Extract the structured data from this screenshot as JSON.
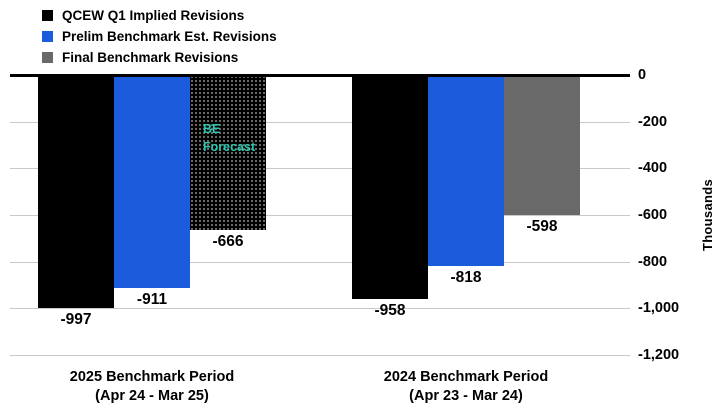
{
  "legend": {
    "items": [
      {
        "label": "QCEW Q1 Implied Revisions",
        "color": "#000000"
      },
      {
        "label": "Prelim Benchmark Est. Revisions",
        "color": "#1A5CDC"
      },
      {
        "label": "Final Benchmark Revisions",
        "color": "#696969"
      }
    ]
  },
  "chart_data": {
    "type": "bar",
    "ylabel": "Thousands",
    "ylim": [
      -1200,
      0
    ],
    "yticks": [
      "0",
      "-200",
      "-400",
      "-600",
      "-800",
      "-1,000",
      "-1,200"
    ],
    "grid": true,
    "legend_position": "top-left",
    "categories": [
      {
        "line1": "2025 Benchmark Period",
        "line2": "(Apr 24 - Mar 25)"
      },
      {
        "line1": "2024 Benchmark Period",
        "line2": "(Apr 23 - Mar 24)"
      }
    ],
    "series": [
      {
        "name": "QCEW Q1 Implied Revisions",
        "color": "#000000",
        "values": [
          -997,
          -958
        ],
        "labels": [
          "-997",
          "-958"
        ]
      },
      {
        "name": "Prelim Benchmark Est. Revisions",
        "color": "#1A5CDC",
        "values": [
          -911,
          -818
        ],
        "labels": [
          "-911",
          "-818"
        ]
      },
      {
        "name": "Final Benchmark Revisions",
        "color": "#696969",
        "values": [
          -666,
          -598
        ],
        "labels": [
          "-666",
          "-598"
        ],
        "pattern_on": [
          true,
          false
        ]
      }
    ],
    "annotation": {
      "lines": [
        "BE",
        "Forecast"
      ],
      "color": "#2DC5AF"
    }
  }
}
